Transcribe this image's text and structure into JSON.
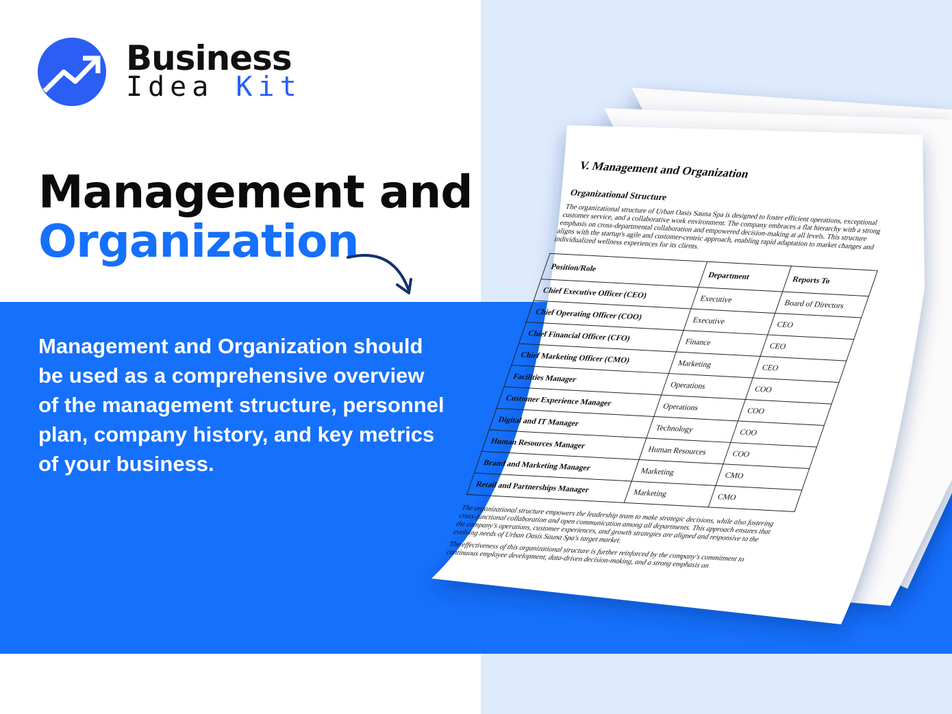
{
  "brand": {
    "line1": "Business",
    "line2a": "Idea",
    "line2b": "Kit",
    "accent": "#2a5ef5"
  },
  "headline": {
    "line1": "Management and",
    "line2": "Organization"
  },
  "description": "Management and Organization should be used as a comprehensive overview of the management structure, personnel plan, company history, and key metrics of your business.",
  "colors": {
    "band": "#1570fb",
    "right_bg": "#deebfd"
  },
  "document": {
    "title": "V. Management and Organization",
    "subtitle": "Organizational Structure",
    "intro": "The organizational structure of Urban Oasis Sauna Spa is designed to foster efficient operations, exceptional customer service, and a collaborative work environment. The company embraces a flat hierarchy with a strong emphasis on cross-departmental collaboration and empowered decision-making at all levels. This structure aligns with the startup's agile and customer-centric approach, enabling rapid adaptation to market changes and individualized wellness experiences for its clients.",
    "table": {
      "headers": [
        "Position/Role",
        "Department",
        "Reports To"
      ],
      "rows": [
        [
          "Chief Executive Officer (CEO)",
          "Executive",
          "Board of Directors"
        ],
        [
          "Chief Operating Officer (COO)",
          "Executive",
          "CEO"
        ],
        [
          "Chief Financial Officer (CFO)",
          "Finance",
          "CEO"
        ],
        [
          "Chief Marketing Officer (CMO)",
          "Marketing",
          "CEO"
        ],
        [
          "Facilities Manager",
          "Operations",
          "COO"
        ],
        [
          "Customer Experience Manager",
          "Operations",
          "COO"
        ],
        [
          "Digital and IT Manager",
          "Technology",
          "COO"
        ],
        [
          "Human Resources Manager",
          "Human Resources",
          "COO"
        ],
        [
          "Brand and Marketing Manager",
          "Marketing",
          "CMO"
        ],
        [
          "Retail and Partnerships Manager",
          "Marketing",
          "CMO"
        ]
      ]
    },
    "para2": "The organizational structure empowers the leadership team to make strategic decisions, while also fostering cross-functional collaboration and open communication among all departments. This approach ensures that the company's operations, customer experiences, and growth strategies are aligned and responsive to the evolving needs of Urban Oasis Sauna Spa's target market.",
    "para3": "The effectiveness of this organizational structure is further reinforced by the company's commitment to continuous employee development, data-driven decision-making, and a strong emphasis on"
  }
}
